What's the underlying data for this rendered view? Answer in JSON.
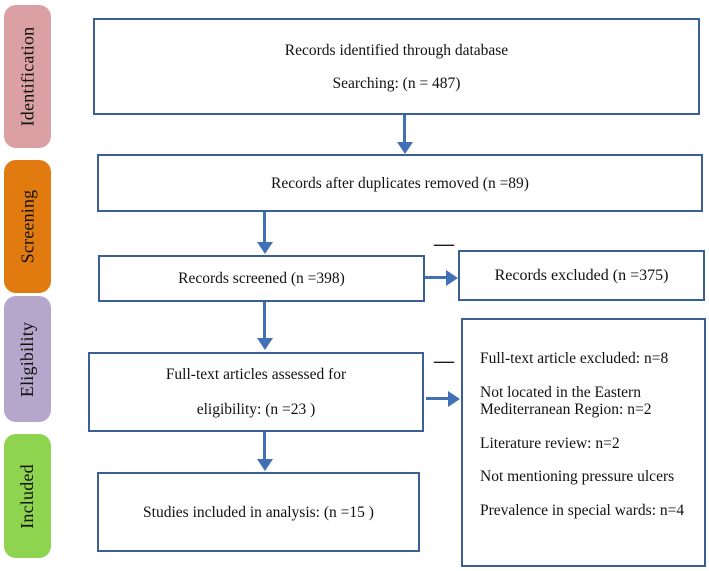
{
  "colors": {
    "box_border_blue": "#3b5e96",
    "arrow_blue": "#4270b4",
    "stage_identification": "#dba0a4",
    "stage_screening": "#e17a0f",
    "stage_eligibility": "#b5a6cb",
    "stage_included": "#8ed44e"
  },
  "stages": {
    "identification": {
      "label": "Identification",
      "color": "#dba0a4"
    },
    "screening": {
      "label": "Screening",
      "color": "#e17a0f"
    },
    "eligibility": {
      "label": "Eligibility",
      "color": "#b5a6cb"
    },
    "included": {
      "label": "Included",
      "color": "#8ed44e"
    }
  },
  "boxes": {
    "identified": {
      "line1": "Records identified through database",
      "line2": "Searching: (n = 487)"
    },
    "duplicates": {
      "text": "Records after duplicates removed (n =89)"
    },
    "screened": {
      "text": "Records screened (n =398)"
    },
    "excluded": {
      "text": "Records excluded (n =375)"
    },
    "fulltext": {
      "line1": "Full-text articles assessed for",
      "line2": "eligibility: (n =23 )"
    },
    "exclusion_reasons": {
      "items": [
        "Full-text article excluded: n=8",
        "Not located in the Eastern Mediterranean Region: n=2",
        "Literature review: n=2",
        "Not mentioning pressure ulcers",
        "Prevalence in special wards: n=4"
      ]
    },
    "included": {
      "text": "Studies included in analysis: (n =15 )"
    }
  },
  "connectors": {
    "minus_glyph": "—"
  }
}
